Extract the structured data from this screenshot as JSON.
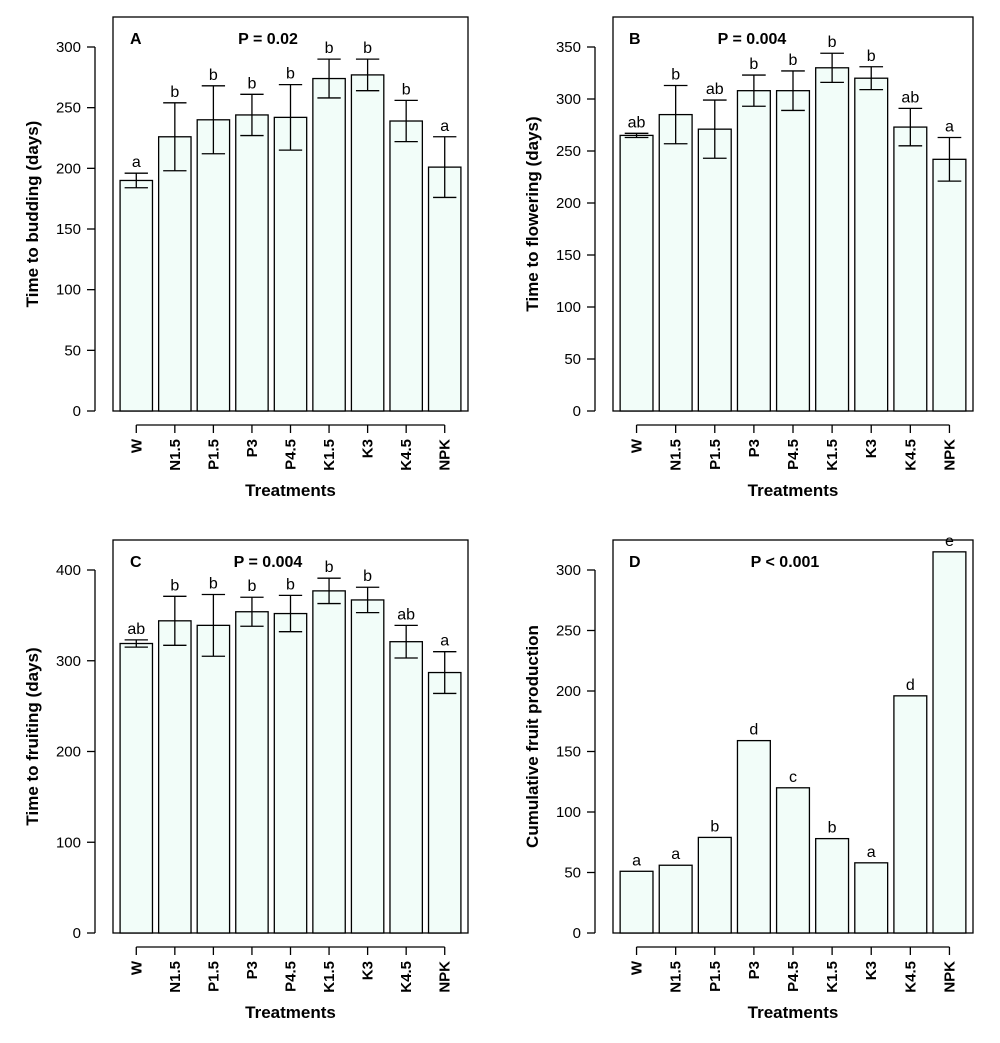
{
  "chart_data": [
    {
      "id": "A",
      "type": "bar",
      "panel_label": "A",
      "p_value": "P = 0.02",
      "xlabel": "Treatments",
      "ylabel": "Time to budding (days)",
      "categories": [
        "W",
        "N1.5",
        "P1.5",
        "P3",
        "P4.5",
        "K1.5",
        "K3",
        "K4.5",
        "NPK"
      ],
      "values": [
        190,
        226,
        240,
        244,
        242,
        274,
        277,
        239,
        201
      ],
      "errors": [
        6,
        28,
        28,
        17,
        27,
        16,
        13,
        17,
        25
      ],
      "letters": [
        "a",
        "b",
        "b",
        "b",
        "b",
        "b",
        "b",
        "b",
        "a"
      ],
      "ylim": [
        0,
        300
      ],
      "yticks": [
        0,
        50,
        100,
        150,
        200,
        250,
        300
      ],
      "bar_fill": "#f2fdf9"
    },
    {
      "id": "B",
      "type": "bar",
      "panel_label": "B",
      "p_value": "P = 0.004",
      "xlabel": "Treatments",
      "ylabel": "Time to flowering (days)",
      "categories": [
        "W",
        "N1.5",
        "P1.5",
        "P3",
        "P4.5",
        "K1.5",
        "K3",
        "K4.5",
        "NPK"
      ],
      "values": [
        265,
        285,
        271,
        308,
        308,
        330,
        320,
        273,
        242
      ],
      "errors": [
        2,
        28,
        28,
        15,
        19,
        14,
        11,
        18,
        21
      ],
      "letters": [
        "ab",
        "b",
        "ab",
        "b",
        "b",
        "b",
        "b",
        "ab",
        "a"
      ],
      "ylim": [
        0,
        350
      ],
      "yticks": [
        0,
        50,
        100,
        150,
        200,
        250,
        300,
        350
      ],
      "bar_fill": "#f2fdf9"
    },
    {
      "id": "C",
      "type": "bar",
      "panel_label": "C",
      "p_value": "P = 0.004",
      "xlabel": "Treatments",
      "ylabel": "Time to fruiting (days)",
      "categories": [
        "W",
        "N1.5",
        "P1.5",
        "P3",
        "P4.5",
        "K1.5",
        "K3",
        "K4.5",
        "NPK"
      ],
      "values": [
        319,
        344,
        339,
        354,
        352,
        377,
        367,
        321,
        287
      ],
      "errors": [
        4,
        27,
        34,
        16,
        20,
        14,
        14,
        18,
        23
      ],
      "letters": [
        "ab",
        "b",
        "b",
        "b",
        "b",
        "b",
        "b",
        "ab",
        "a"
      ],
      "ylim": [
        0,
        400
      ],
      "yticks": [
        0,
        100,
        200,
        300,
        400
      ],
      "bar_fill": "#f2fdf9"
    },
    {
      "id": "D",
      "type": "bar",
      "panel_label": "D",
      "p_value": "P < 0.001",
      "xlabel": "Treatments",
      "ylabel": "Cumulative fruit production",
      "categories": [
        "W",
        "N1.5",
        "P1.5",
        "P3",
        "P4.5",
        "K1.5",
        "K3",
        "K4.5",
        "NPK"
      ],
      "values": [
        51,
        56,
        79,
        159,
        120,
        78,
        58,
        196,
        315
      ],
      "errors": [],
      "letters": [
        "a",
        "a",
        "b",
        "d",
        "c",
        "b",
        "a",
        "d",
        "e"
      ],
      "ylim": [
        0,
        300
      ],
      "yticks": [
        0,
        50,
        100,
        150,
        200,
        250,
        300
      ],
      "bar_fill": "#f2fdf9"
    }
  ]
}
